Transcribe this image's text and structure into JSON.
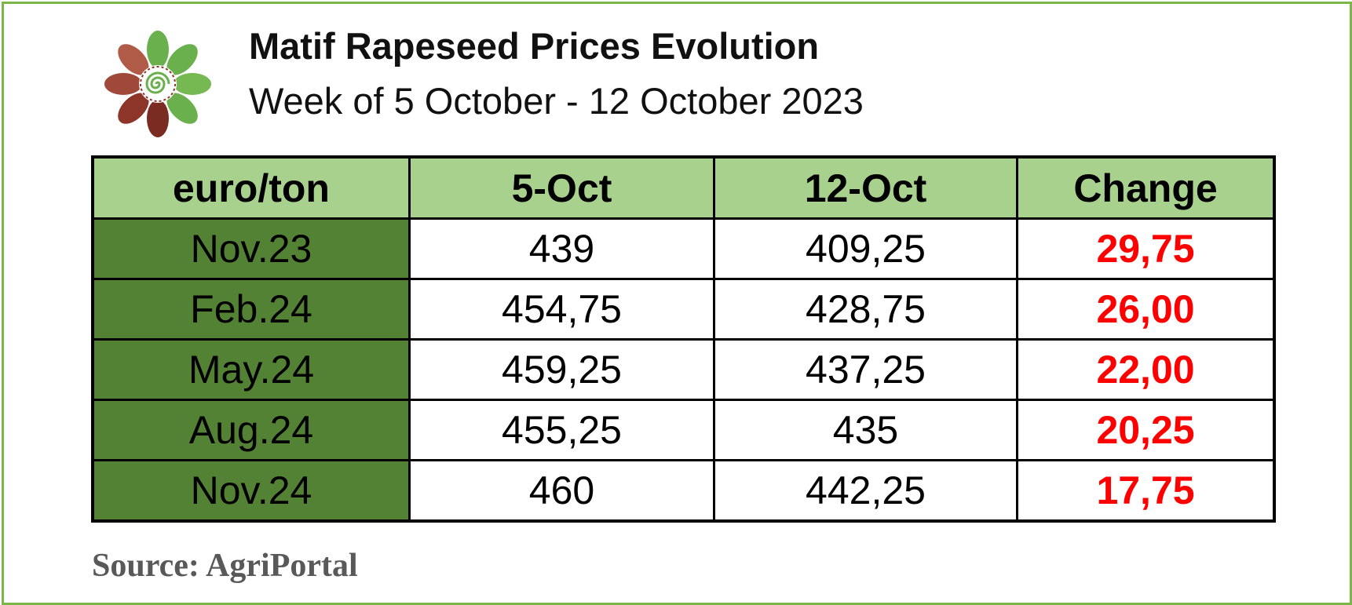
{
  "header": {
    "title": "Matif Rapeseed Prices Evolution",
    "subtitle": "Week of 5 October - 12 October 2023"
  },
  "logo": {
    "icon": "flower-spiral-logo-icon",
    "colors": {
      "green": "#6ab04c",
      "red": "#9b3a2e",
      "dark_red": "#6e2a22"
    }
  },
  "table": {
    "headers": [
      "euro/ton",
      "5-Oct",
      "12-Oct",
      "Change"
    ],
    "rows": [
      {
        "label": "Nov.23",
        "oct5": "439",
        "oct12": "409,25",
        "change": "29,75"
      },
      {
        "label": "Feb.24",
        "oct5": "454,75",
        "oct12": "428,75",
        "change": "26,00"
      },
      {
        "label": "May.24",
        "oct5": "459,25",
        "oct12": "437,25",
        "change": "22,00"
      },
      {
        "label": "Aug.24",
        "oct5": "455,25",
        "oct12": "435",
        "change": "20,25"
      },
      {
        "label": "Nov.24",
        "oct5": "460",
        "oct12": "442,25",
        "change": "17,75"
      }
    ],
    "colors": {
      "header_bg": "#a9d18e",
      "label_bg": "#548235",
      "change_text": "#ff0000",
      "border": "#000000"
    }
  },
  "footer": {
    "source": "Source: AgriPortal"
  }
}
